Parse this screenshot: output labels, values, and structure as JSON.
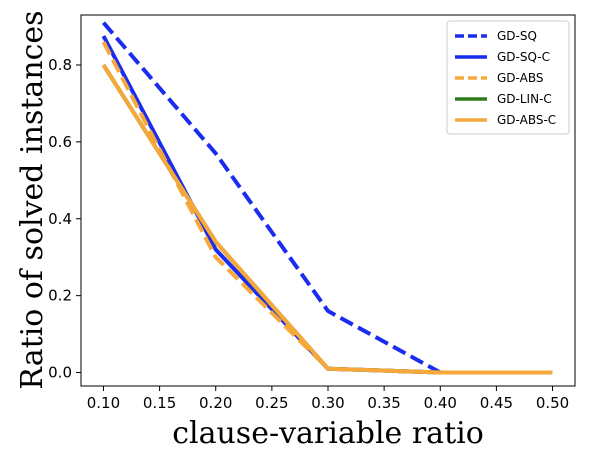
{
  "chart_data": {
    "type": "line",
    "title": "",
    "xlabel": "clause-variable ratio",
    "ylabel": "Ratio of solved instances",
    "x": [
      0.1,
      0.2,
      0.3,
      0.4,
      0.5
    ],
    "xlim": [
      0.08,
      0.52
    ],
    "ylim": [
      -0.035,
      0.93
    ],
    "xticks": [
      0.1,
      0.15,
      0.2,
      0.25,
      0.3,
      0.35,
      0.4,
      0.45,
      0.5
    ],
    "xtick_labels": [
      "0.10",
      "0.15",
      "0.20",
      "0.25",
      "0.30",
      "0.35",
      "0.40",
      "0.45",
      "0.50"
    ],
    "yticks": [
      0.0,
      0.2,
      0.4,
      0.6,
      0.8
    ],
    "ytick_labels": [
      "0.0",
      "0.2",
      "0.4",
      "0.6",
      "0.8"
    ],
    "legend_position": "top-right",
    "series": [
      {
        "name": "GD-SQ",
        "color": "#1a2cf0",
        "style": "dashed",
        "values": [
          0.91,
          0.57,
          0.16,
          0.0,
          0.0
        ]
      },
      {
        "name": "GD-SQ-C",
        "color": "#1a2cf0",
        "style": "solid",
        "values": [
          0.875,
          0.32,
          0.01,
          0.0,
          0.0
        ]
      },
      {
        "name": "GD-ABS",
        "color": "#f8a93b",
        "style": "dashed",
        "values": [
          0.86,
          0.3,
          0.01,
          0.0,
          0.0
        ]
      },
      {
        "name": "GD-LIN-C",
        "color": "#2e7d1a",
        "style": "solid",
        "values": [
          0.8,
          0.34,
          0.01,
          0.0,
          0.0
        ]
      },
      {
        "name": "GD-ABS-C",
        "color": "#f6a93a",
        "style": "solid",
        "values": [
          0.8,
          0.34,
          0.01,
          0.0,
          0.0
        ]
      }
    ]
  }
}
